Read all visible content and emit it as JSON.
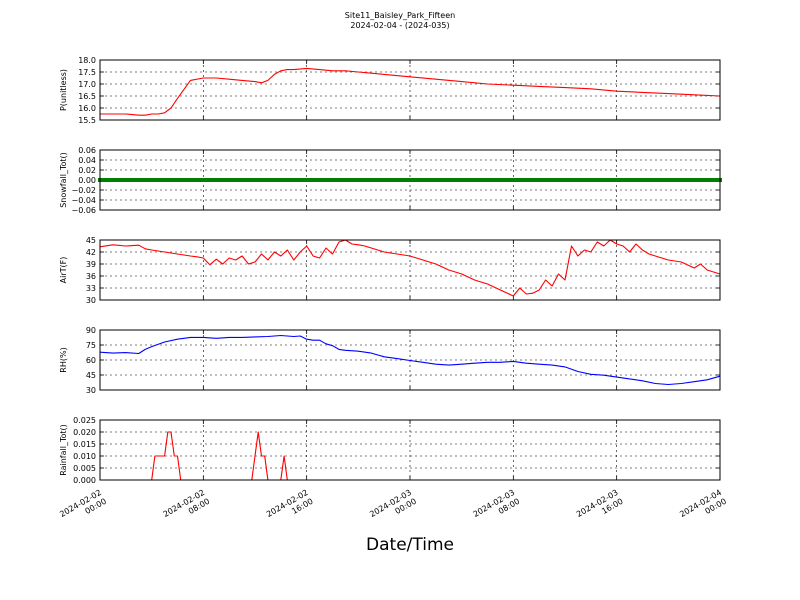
{
  "title": "Site11_Baisley_Park_Fifteen",
  "subtitle": "2024-02-04 - (2024-035)",
  "xlabel": "Date/Time",
  "x_ticks": [
    [
      "2024-02-02",
      "00:00"
    ],
    [
      "2024-02-02",
      "08:00"
    ],
    [
      "2024-02-02",
      "16:00"
    ],
    [
      "2024-02-03",
      "00:00"
    ],
    [
      "2024-02-03",
      "08:00"
    ],
    [
      "2024-02-03",
      "16:00"
    ],
    [
      "2024-02-04",
      "00:00"
    ]
  ],
  "colors": {
    "red": "#ff0000",
    "green": "#008000",
    "blue": "#0000ff"
  },
  "chart_data": [
    {
      "type": "line",
      "ylabel": "P(unitless)",
      "ylim": [
        15.5,
        18.0
      ],
      "yticks": [
        "15.5",
        "16.0",
        "16.5",
        "17.0",
        "17.5",
        "18.0"
      ],
      "color": "red",
      "x_hours": [
        0,
        2,
        3,
        3.5,
        4,
        4.5,
        5,
        5.5,
        6,
        7,
        8,
        9,
        10,
        11,
        12,
        12.5,
        13,
        13.5,
        14,
        14.5,
        15,
        16,
        17,
        18,
        19,
        20,
        21,
        22,
        24,
        26,
        28,
        30,
        32,
        34,
        36,
        38,
        40,
        42,
        44,
        46,
        48
      ],
      "y": [
        15.75,
        15.75,
        15.7,
        15.7,
        15.75,
        15.75,
        15.8,
        16.0,
        16.4,
        17.15,
        17.25,
        17.25,
        17.2,
        17.15,
        17.1,
        17.05,
        17.15,
        17.4,
        17.55,
        17.6,
        17.6,
        17.65,
        17.6,
        17.55,
        17.55,
        17.5,
        17.45,
        17.4,
        17.3,
        17.2,
        17.1,
        17.0,
        16.95,
        16.9,
        16.85,
        16.8,
        16.7,
        16.65,
        16.6,
        16.55,
        16.5
      ]
    },
    {
      "type": "scatter",
      "ylabel": "Snowfall_Tot()",
      "ylim": [
        -0.06,
        0.06
      ],
      "yticks": [
        "−0.06",
        "−0.04",
        "−0.02",
        "0.00",
        "0.02",
        "0.04",
        "0.06"
      ],
      "color": "green",
      "x_range_hours": [
        0,
        48
      ],
      "y_constant": 0.0
    },
    {
      "type": "line",
      "ylabel": "AirT(F)",
      "ylim": [
        30,
        45
      ],
      "yticks": [
        "30",
        "33",
        "36",
        "39",
        "42",
        "45"
      ],
      "color": "red",
      "x_hours": [
        0,
        1,
        2,
        3,
        3.5,
        4,
        5,
        6,
        7,
        7.5,
        8,
        8.5,
        9,
        9.5,
        10,
        10.5,
        11,
        11.5,
        12,
        12.5,
        13,
        13.5,
        14,
        14.5,
        15,
        15.5,
        16,
        16.5,
        17,
        17.5,
        18,
        18.5,
        19,
        19.5,
        20,
        20.5,
        21,
        22,
        23,
        24,
        25,
        26,
        27,
        28,
        29,
        30,
        31,
        32,
        32.5,
        33,
        33.5,
        34,
        34.5,
        35,
        35.5,
        36,
        36.5,
        37,
        37.5,
        38,
        38.5,
        39,
        39.5,
        40,
        40.5,
        41,
        41.5,
        42,
        42.5,
        43,
        44,
        45,
        46,
        46.5,
        47,
        47.5,
        48
      ],
      "y": [
        43.3,
        43.8,
        43.5,
        43.7,
        42.8,
        42.5,
        42.0,
        41.5,
        41.0,
        40.8,
        40.5,
        38.8,
        40.2,
        39.0,
        40.5,
        40.0,
        41.0,
        39.0,
        39.5,
        41.5,
        40.0,
        42.0,
        41.0,
        42.5,
        40.0,
        42.0,
        43.5,
        41.0,
        40.5,
        43.0,
        41.5,
        44.5,
        45.0,
        44.0,
        43.8,
        43.5,
        43.0,
        42.0,
        41.5,
        41.0,
        40.0,
        39.0,
        37.5,
        36.5,
        35.0,
        34.0,
        32.5,
        31.0,
        33.0,
        31.5,
        31.7,
        32.5,
        35.0,
        33.5,
        36.5,
        35.0,
        43.5,
        41.0,
        42.5,
        42.0,
        44.5,
        43.5,
        45.0,
        44.0,
        43.5,
        42.0,
        44.0,
        42.5,
        41.5,
        41.0,
        40.0,
        39.5,
        38.0,
        39.0,
        37.5,
        37.0,
        36.5
      ]
    },
    {
      "type": "line",
      "ylabel": "RH(%)",
      "ylim": [
        30,
        95
      ],
      "yticks": [
        "30",
        "45",
        "60",
        "75",
        "90"
      ],
      "color": "blue",
      "x_hours": [
        0,
        1,
        2,
        3,
        3.5,
        4,
        5,
        6,
        7,
        8,
        9,
        10,
        11,
        12,
        13,
        14,
        15,
        15.5,
        16,
        16.5,
        17,
        17.5,
        18,
        18.5,
        19,
        20,
        21,
        22,
        23,
        24,
        25,
        26,
        27,
        28,
        29,
        30,
        31,
        32,
        33,
        34,
        35,
        36,
        37,
        38,
        39,
        40,
        41,
        42,
        43,
        44,
        45,
        46,
        47,
        48
      ],
      "y": [
        71,
        70,
        70.5,
        69.5,
        74,
        77,
        82,
        85,
        87,
        87,
        86,
        87,
        87,
        87.5,
        88,
        89,
        88,
        88.5,
        85,
        84,
        84,
        80,
        78,
        74,
        73,
        72,
        70,
        66,
        64,
        62,
        60,
        58,
        57,
        58,
        59,
        60,
        60,
        61,
        59,
        58,
        57,
        55,
        50,
        47,
        46,
        44,
        42,
        40,
        37,
        36,
        37,
        39,
        41,
        45
      ]
    },
    {
      "type": "line",
      "ylabel": "Rainfall_Tot()",
      "ylim": [
        0,
        0.025
      ],
      "yticks": [
        "0.000",
        "0.005",
        "0.010",
        "0.015",
        "0.020",
        "0.025"
      ],
      "color": "red",
      "x_hours": [
        0,
        4,
        4.25,
        4.5,
        5,
        5.25,
        5.5,
        5.75,
        6,
        6.25,
        11.75,
        12,
        12.25,
        12.5,
        12.75,
        13,
        14,
        14.25,
        14.5,
        48
      ],
      "y": [
        0,
        0,
        0.01,
        0.01,
        0.01,
        0.02,
        0.02,
        0.01,
        0.01,
        0,
        0,
        0.01,
        0.02,
        0.01,
        0.01,
        0,
        0,
        0.01,
        0,
        0
      ]
    }
  ]
}
